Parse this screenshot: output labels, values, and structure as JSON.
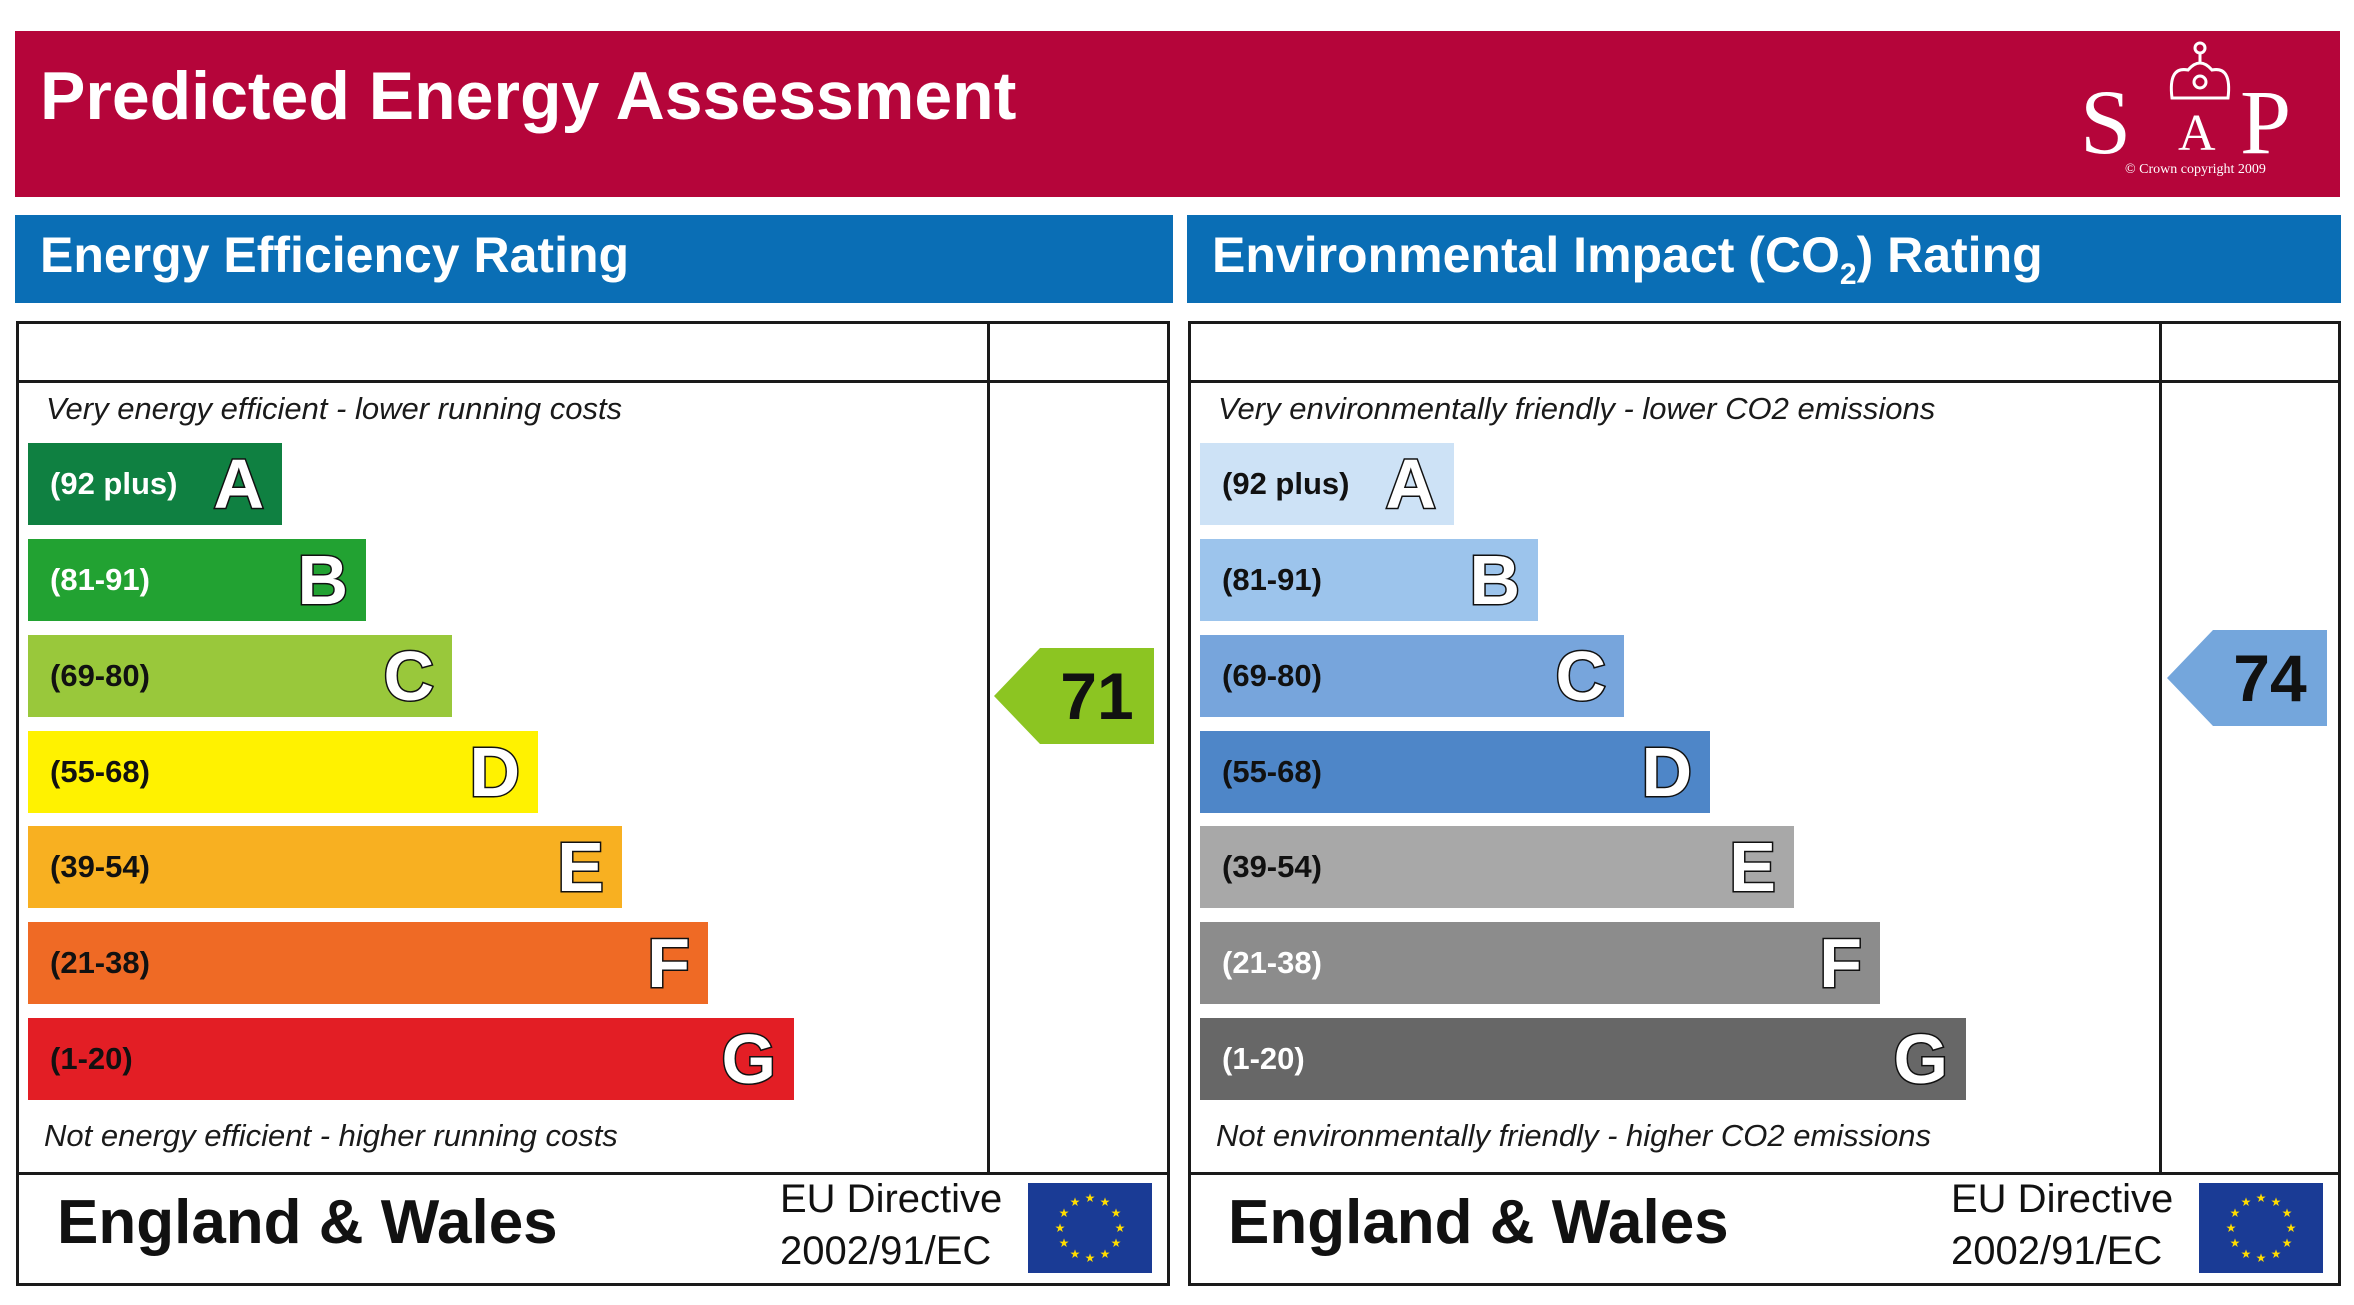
{
  "header": {
    "title": "Predicted Energy Assessment",
    "logo": {
      "letters": [
        "S",
        "A",
        "P"
      ],
      "copyright": "© Crown copyright 2009"
    }
  },
  "energy": {
    "title": "Energy Efficiency Rating",
    "top_caption": "Very energy efficient - lower running costs",
    "bottom_caption": "Not energy efficient - higher running costs",
    "bands": [
      {
        "range": "(92 plus)",
        "letter": "A",
        "color": "#0f8041",
        "text_color": "#ffffff"
      },
      {
        "range": "(81-91)",
        "letter": "B",
        "color": "#22a232",
        "text_color": "#ffffff"
      },
      {
        "range": "(69-80)",
        "letter": "C",
        "color": "#99c83b",
        "text_color": "#111111"
      },
      {
        "range": "(55-68)",
        "letter": "D",
        "color": "#fff200",
        "text_color": "#111111"
      },
      {
        "range": "(39-54)",
        "letter": "E",
        "color": "#f8b021",
        "text_color": "#111111"
      },
      {
        "range": "(21-38)",
        "letter": "F",
        "color": "#ef6a25",
        "text_color": "#111111"
      },
      {
        "range": "(1-20)",
        "letter": "G",
        "color": "#e31e25",
        "text_color": "#111111"
      }
    ],
    "current_rating": "71",
    "current_color": "#8cc522",
    "footer": {
      "country": "England & Wales",
      "directive_line1": "EU Directive",
      "directive_line2": "2002/91/EC"
    }
  },
  "environment": {
    "title_prefix": "Environmental Impact (CO",
    "title_sub": "2",
    "title_suffix": ") Rating",
    "top_caption": "Very environmentally friendly - lower CO2 emissions",
    "bottom_caption": "Not environmentally friendly - higher CO2 emissions",
    "bands": [
      {
        "range": "(92 plus)",
        "letter": "A",
        "color": "#cde2f6",
        "text_color": "#111111"
      },
      {
        "range": "(81-91)",
        "letter": "B",
        "color": "#9cc4ec",
        "text_color": "#111111"
      },
      {
        "range": "(69-80)",
        "letter": "C",
        "color": "#77a5dc",
        "text_color": "#111111"
      },
      {
        "range": "(55-68)",
        "letter": "D",
        "color": "#4e86c8",
        "text_color": "#111111"
      },
      {
        "range": "(39-54)",
        "letter": "E",
        "color": "#a8a8a8",
        "text_color": "#111111"
      },
      {
        "range": "(21-38)",
        "letter": "F",
        "color": "#8c8c8c",
        "text_color": "#ffffff"
      },
      {
        "range": "(1-20)",
        "letter": "G",
        "color": "#676767",
        "text_color": "#ffffff"
      }
    ],
    "current_rating": "74",
    "current_color": "#74a6dc",
    "footer": {
      "country": "England & Wales",
      "directive_line1": "EU Directive",
      "directive_line2": "2002/91/EC"
    }
  }
}
